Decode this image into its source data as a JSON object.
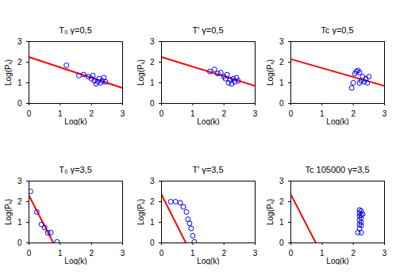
{
  "chart_data": [
    {
      "type": "scatter",
      "title": "T₀ γ=0,5",
      "x_label": "Log(k)",
      "y_label": "Log(Pₖ)",
      "xlim": [
        0,
        3
      ],
      "ylim": [
        0,
        3
      ],
      "xticks": [
        0,
        1,
        2,
        3
      ],
      "yticks": [
        0,
        1,
        2,
        3
      ],
      "series": [
        {
          "type": "line",
          "color": "#ff0000",
          "line_style": "solid",
          "x": [
            0,
            3
          ],
          "values": [
            2.25,
            0.75
          ]
        },
        {
          "type": "scatter",
          "color": "#0000ff",
          "marker": "circle",
          "x": [
            1.2,
            1.6,
            1.75,
            1.9,
            2.0,
            2.05,
            2.1,
            2.15,
            2.2,
            2.25,
            2.3,
            2.35,
            2.4,
            2.45
          ],
          "values": [
            1.85,
            1.35,
            1.4,
            1.3,
            1.2,
            1.35,
            1.1,
            0.95,
            1.05,
            1.2,
            1.0,
            1.1,
            1.25,
            1.05
          ]
        }
      ]
    },
    {
      "type": "scatter",
      "title": "T' γ=0,5",
      "x_label": "Log(k)",
      "y_label": "Log(Pₖ)",
      "xlim": [
        0,
        3
      ],
      "ylim": [
        0,
        3
      ],
      "xticks": [
        0,
        1,
        2,
        3
      ],
      "yticks": [
        0,
        1,
        2,
        3
      ],
      "series": [
        {
          "type": "line",
          "color": "#ff0000",
          "line_style": "solid",
          "x": [
            0,
            3
          ],
          "values": [
            2.25,
            0.85
          ]
        },
        {
          "type": "scatter",
          "color": "#0000ff",
          "marker": "circle",
          "x": [
            1.55,
            1.7,
            1.8,
            1.9,
            2.0,
            2.05,
            2.1,
            2.15,
            2.2,
            2.25,
            2.3,
            2.35,
            2.4,
            2.45
          ],
          "values": [
            1.55,
            1.65,
            1.45,
            1.5,
            1.3,
            1.2,
            1.4,
            1.0,
            1.15,
            0.95,
            1.2,
            1.05,
            1.25,
            1.1
          ]
        }
      ]
    },
    {
      "type": "scatter",
      "title": "Tc γ=0,5",
      "x_label": "Log(k)",
      "y_label": "Log(Pₖ)",
      "xlim": [
        0,
        3
      ],
      "ylim": [
        0,
        3
      ],
      "xticks": [
        0,
        1,
        2,
        3
      ],
      "yticks": [
        0,
        1,
        2,
        3
      ],
      "series": [
        {
          "type": "line",
          "color": "#ff0000",
          "line_style": "solid",
          "x": [
            0,
            3
          ],
          "values": [
            2.15,
            0.85
          ]
        },
        {
          "type": "scatter",
          "color": "#0000ff",
          "marker": "circle",
          "x": [
            1.95,
            2.0,
            2.05,
            2.1,
            2.15,
            2.2,
            2.25,
            2.3,
            2.35,
            2.4,
            2.45,
            2.5,
            2.2
          ],
          "values": [
            0.75,
            1.0,
            1.45,
            1.55,
            1.6,
            1.5,
            1.1,
            1.3,
            1.05,
            1.2,
            1.0,
            1.3,
            1.0
          ]
        }
      ]
    },
    {
      "type": "scatter",
      "title": "T₀ γ=3,5",
      "x_label": "Log(k)",
      "y_label": "Log(Pₖ)",
      "xlim": [
        0,
        3
      ],
      "ylim": [
        0,
        3
      ],
      "xticks": [
        0,
        1,
        2,
        3
      ],
      "yticks": [
        0,
        1,
        2,
        3
      ],
      "series": [
        {
          "type": "line",
          "color": "#ff0000",
          "line_style": "solid",
          "x": [
            0,
            0.78
          ],
          "values": [
            2.3,
            0
          ]
        },
        {
          "type": "scatter",
          "color": "#0000ff",
          "marker": "circle",
          "x": [
            0.05,
            0.25,
            0.4,
            0.5,
            0.6,
            0.7,
            0.9
          ],
          "values": [
            2.5,
            1.5,
            0.9,
            0.75,
            0.5,
            0.5,
            0.05
          ]
        }
      ]
    },
    {
      "type": "scatter",
      "title": "T' γ=3,5",
      "x_label": "Log(k)",
      "y_label": "Log(Pₖ)",
      "xlim": [
        0,
        3
      ],
      "ylim": [
        0,
        3
      ],
      "xticks": [
        0,
        1,
        2,
        3
      ],
      "yticks": [
        0,
        1,
        2,
        3
      ],
      "series": [
        {
          "type": "line",
          "color": "#ff0000",
          "line_style": "solid",
          "x": [
            0,
            0.78
          ],
          "values": [
            2.35,
            0
          ]
        },
        {
          "type": "scatter",
          "color": "#0000ff",
          "marker": "circle",
          "x": [
            0.3,
            0.45,
            0.6,
            0.7,
            0.8,
            0.85,
            0.9,
            0.95,
            1.0,
            1.05
          ],
          "values": [
            2.0,
            2.0,
            1.95,
            1.75,
            1.5,
            1.15,
            0.95,
            0.7,
            0.35,
            0.05
          ]
        }
      ]
    },
    {
      "type": "scatter",
      "title": "Tc 105000 γ=3,5",
      "x_label": "Log(k)",
      "y_label": "Log(Pₖ)",
      "xlim": [
        0,
        3
      ],
      "ylim": [
        0,
        3
      ],
      "xticks": [
        0,
        1,
        2,
        3
      ],
      "yticks": [
        0,
        1,
        2,
        3
      ],
      "series": [
        {
          "type": "line",
          "color": "#ff0000",
          "line_style": "solid",
          "x": [
            0,
            0.8
          ],
          "values": [
            2.35,
            0
          ]
        },
        {
          "type": "scatter",
          "color": "#0000ff",
          "marker": "circle",
          "x": [
            2.2,
            2.25,
            2.2,
            2.25,
            2.2,
            2.25,
            2.2,
            2.25,
            2.2,
            2.25,
            2.2,
            2.15,
            2.25,
            2.3
          ],
          "values": [
            1.6,
            1.55,
            1.45,
            1.35,
            1.3,
            1.2,
            1.1,
            1.0,
            0.9,
            0.85,
            0.7,
            0.5,
            0.5,
            1.4
          ]
        }
      ]
    }
  ]
}
